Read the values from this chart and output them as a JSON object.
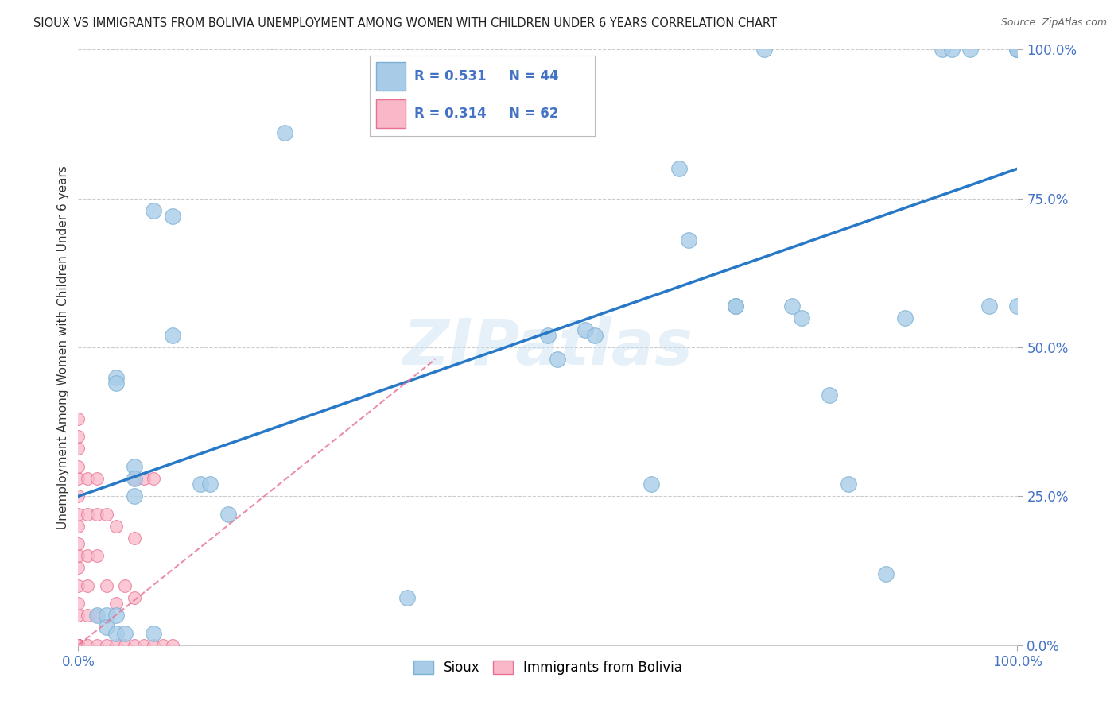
{
  "title": "SIOUX VS IMMIGRANTS FROM BOLIVIA UNEMPLOYMENT AMONG WOMEN WITH CHILDREN UNDER 6 YEARS CORRELATION CHART",
  "source": "Source: ZipAtlas.com",
  "ylabel": "Unemployment Among Women with Children Under 6 years",
  "watermark": "ZIPatlas",
  "sioux_R": 0.531,
  "sioux_N": 44,
  "bolivia_R": 0.314,
  "bolivia_N": 62,
  "sioux_color": "#a8cce8",
  "sioux_edge_color": "#7ab0d4",
  "bolivia_color": "#f9b8c8",
  "bolivia_edge_color": "#e87090",
  "trend_sioux_color": "#2878c8",
  "trend_bolivia_color": "#e87090",
  "sioux_x": [
    0.22,
    0.08,
    0.1,
    0.1,
    0.04,
    0.04,
    0.06,
    0.06,
    0.13,
    0.14,
    0.16,
    0.35,
    0.5,
    0.51,
    0.54,
    0.55,
    0.61,
    0.64,
    0.65,
    0.7,
    0.7,
    0.73,
    0.76,
    0.77,
    0.8,
    0.82,
    0.86,
    0.88,
    0.92,
    0.93,
    0.95,
    0.97,
    1.0,
    1.0,
    1.0,
    1.0,
    0.02,
    0.03,
    0.03,
    0.04,
    0.04,
    0.05,
    0.06,
    0.08
  ],
  "sioux_y": [
    0.86,
    0.73,
    0.72,
    0.52,
    0.45,
    0.44,
    0.3,
    0.28,
    0.27,
    0.27,
    0.22,
    0.08,
    0.52,
    0.48,
    0.53,
    0.52,
    0.27,
    0.8,
    0.68,
    0.57,
    0.57,
    1.0,
    0.57,
    0.55,
    0.42,
    0.27,
    0.12,
    0.55,
    1.0,
    1.0,
    1.0,
    0.57,
    0.57,
    1.0,
    1.0,
    1.0,
    0.05,
    0.05,
    0.03,
    0.05,
    0.02,
    0.02,
    0.25,
    0.02
  ],
  "bolivia_x": [
    0.0,
    0.0,
    0.0,
    0.0,
    0.0,
    0.0,
    0.0,
    0.0,
    0.0,
    0.0,
    0.0,
    0.0,
    0.0,
    0.0,
    0.0,
    0.0,
    0.0,
    0.0,
    0.0,
    0.0,
    0.0,
    0.0,
    0.0,
    0.0,
    0.0,
    0.0,
    0.0,
    0.0,
    0.0,
    0.0,
    0.0,
    0.0,
    0.0,
    0.01,
    0.01,
    0.01,
    0.01,
    0.01,
    0.01,
    0.02,
    0.02,
    0.02,
    0.02,
    0.02,
    0.03,
    0.03,
    0.03,
    0.04,
    0.04,
    0.04,
    0.05,
    0.05,
    0.06,
    0.06,
    0.06,
    0.06,
    0.07,
    0.07,
    0.08,
    0.08,
    0.09,
    0.1
  ],
  "bolivia_y": [
    0.0,
    0.0,
    0.0,
    0.0,
    0.0,
    0.0,
    0.0,
    0.0,
    0.0,
    0.0,
    0.0,
    0.0,
    0.0,
    0.0,
    0.0,
    0.0,
    0.0,
    0.0,
    0.05,
    0.07,
    0.1,
    0.13,
    0.15,
    0.17,
    0.2,
    0.22,
    0.25,
    0.28,
    0.3,
    0.33,
    0.35,
    0.38,
    0.0,
    0.0,
    0.05,
    0.1,
    0.15,
    0.22,
    0.28,
    0.0,
    0.05,
    0.15,
    0.22,
    0.28,
    0.0,
    0.1,
    0.22,
    0.0,
    0.07,
    0.2,
    0.0,
    0.1,
    0.0,
    0.08,
    0.18,
    0.28,
    0.0,
    0.28,
    0.0,
    0.28,
    0.0,
    0.0
  ],
  "sioux_trend_x0": 0.0,
  "sioux_trend_y0": 0.25,
  "sioux_trend_x1": 1.0,
  "sioux_trend_y1": 0.8,
  "bolivia_trend_x0": 0.0,
  "bolivia_trend_y0": 0.0,
  "bolivia_trend_x1": 0.38,
  "bolivia_trend_y1": 0.48,
  "xlim": [
    0.0,
    1.0
  ],
  "ylim": [
    0.0,
    1.0
  ],
  "yticks": [
    0.0,
    0.25,
    0.5,
    0.75,
    1.0
  ],
  "ytick_labels": [
    "0.0%",
    "25.0%",
    "50.0%",
    "75.0%",
    "100.0%"
  ],
  "xtick_labels": [
    "0.0%",
    "100.0%"
  ],
  "background_color": "#ffffff",
  "grid_color": "#cccccc",
  "tick_color": "#4472c4"
}
